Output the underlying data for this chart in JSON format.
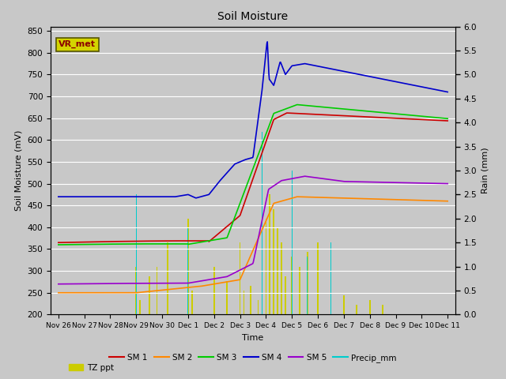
{
  "title": "Soil Moisture",
  "xlabel": "Time",
  "ylabel_left": "Soil Moisture (mV)",
  "ylabel_right": "Rain (mm)",
  "ylim_left": [
    200,
    860
  ],
  "ylim_right": [
    0.0,
    6.0
  ],
  "yticks_left": [
    200,
    250,
    300,
    350,
    400,
    450,
    500,
    550,
    600,
    650,
    700,
    750,
    800,
    850
  ],
  "yticks_right": [
    0.0,
    0.5,
    1.0,
    1.5,
    2.0,
    2.5,
    3.0,
    3.5,
    4.0,
    4.5,
    5.0,
    5.5,
    6.0
  ],
  "bg_color": "#c8c8c8",
  "plot_bg_color": "#e0e0e0",
  "annotation_text": "VR_met",
  "annotation_color": "#8b0000",
  "annotation_bg": "#d4d400",
  "sm1_color": "#cc0000",
  "sm2_color": "#ff8800",
  "sm3_color": "#00cc00",
  "sm4_color": "#0000cc",
  "sm5_color": "#9900cc",
  "precip_color": "#00cccc",
  "tz_color": "#cccc00",
  "linewidth": 1.2,
  "xtick_labels": [
    "Nov 26",
    "Nov 27",
    "Nov 28",
    "Nov 29",
    "Nov 30",
    "Dec 1",
    "Dec 2",
    "Dec 3",
    "Dec 4",
    "Dec 5",
    "Dec 6",
    "Dec 7",
    "Dec 8",
    "Dec 9",
    "Dec 10",
    "Dec 11"
  ],
  "xtick_positions": [
    0,
    1,
    2,
    3,
    4,
    5,
    6,
    7,
    8,
    9,
    10,
    11,
    12,
    13,
    14,
    15
  ]
}
